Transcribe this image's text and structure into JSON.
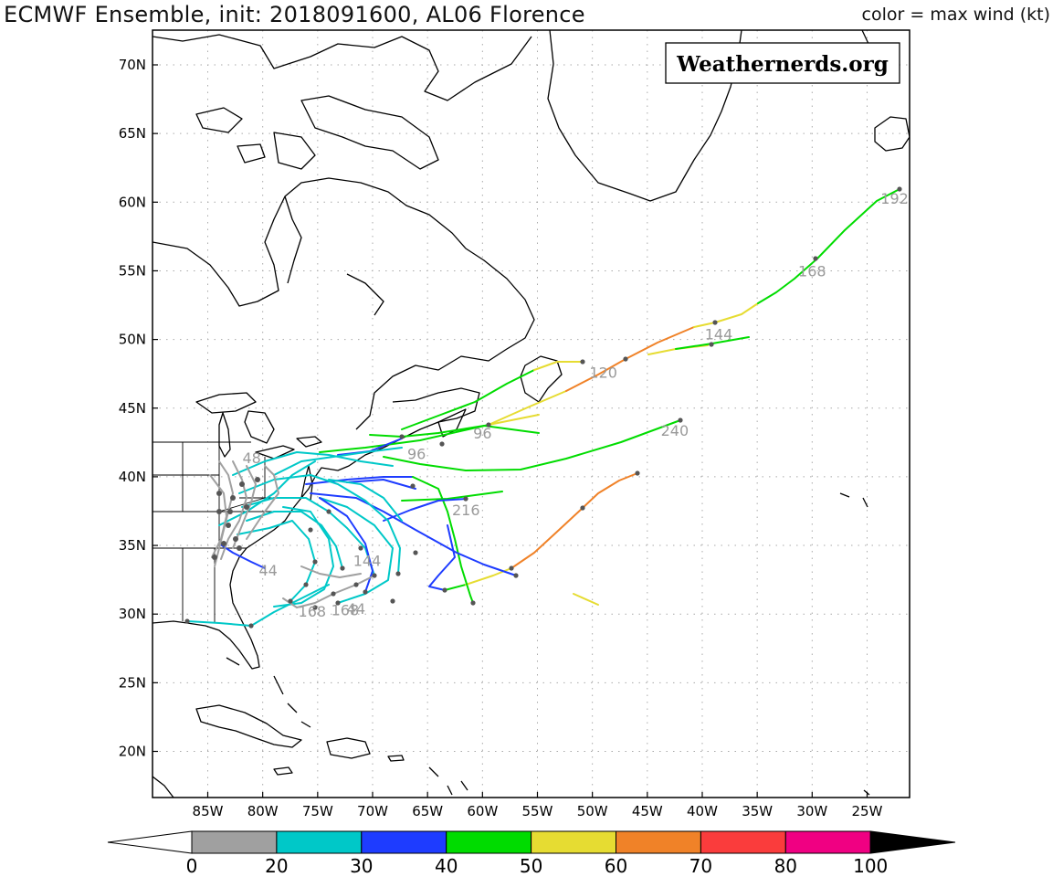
{
  "header": {
    "title": "ECMWF Ensemble, init: 2018091600, AL06 Florence",
    "color_label": "color = max wind (kt)"
  },
  "watermark": "Weathernerds.org",
  "axes": {
    "lon_ticks": [
      "85W",
      "80W",
      "75W",
      "70W",
      "65W",
      "60W",
      "55W",
      "50W",
      "45W",
      "40W",
      "35W",
      "30W",
      "25W"
    ],
    "lat_ticks": [
      "70N",
      "65N",
      "60N",
      "55N",
      "50N",
      "45N",
      "40N",
      "35N",
      "30N",
      "25N",
      "20N"
    ]
  },
  "colorbar": {
    "labels": [
      "0",
      "20",
      "30",
      "40",
      "50",
      "60",
      "70",
      "80",
      "100"
    ],
    "bins": [
      {
        "range": "20-30",
        "color": "#a0a0a0"
      },
      {
        "range": "30-40",
        "color": "#00c8c8"
      },
      {
        "range": "40-50",
        "color": "#1e3cff"
      },
      {
        "range": "50-60",
        "color": "#00dc00"
      },
      {
        "range": "60-70",
        "color": "#e6dc32"
      },
      {
        "range": "70-80",
        "color": "#f08228"
      },
      {
        "range": "80-90",
        "color": "#fa3c3c"
      },
      {
        "range": "90-100",
        "color": "#f00082"
      }
    ],
    "under_color": "#ffffff",
    "over_color": "#000000"
  },
  "hour_labels": [
    {
      "text": "192",
      "lon": -22.5,
      "lat": 59.9
    },
    {
      "text": "168",
      "lon": -30.0,
      "lat": 54.6
    },
    {
      "text": "144",
      "lon": -38.5,
      "lat": 50.0
    },
    {
      "text": "120",
      "lon": -49.0,
      "lat": 47.2
    },
    {
      "text": "240",
      "lon": -42.5,
      "lat": 43.0
    },
    {
      "text": "96",
      "lon": -60.0,
      "lat": 42.8
    },
    {
      "text": "96",
      "lon": -66.0,
      "lat": 41.3
    },
    {
      "text": "216",
      "lon": -61.5,
      "lat": 37.2
    },
    {
      "text": "48",
      "lon": -81.0,
      "lat": 41.0
    },
    {
      "text": "44",
      "lon": -79.5,
      "lat": 32.8
    },
    {
      "text": "44",
      "lon": -71.5,
      "lat": 30.0
    },
    {
      "text": "168",
      "lon": -75.5,
      "lat": 29.8
    },
    {
      "text": "168",
      "lon": -72.5,
      "lat": 29.9
    },
    {
      "text": "144",
      "lon": -70.5,
      "lat": 33.5
    }
  ]
}
